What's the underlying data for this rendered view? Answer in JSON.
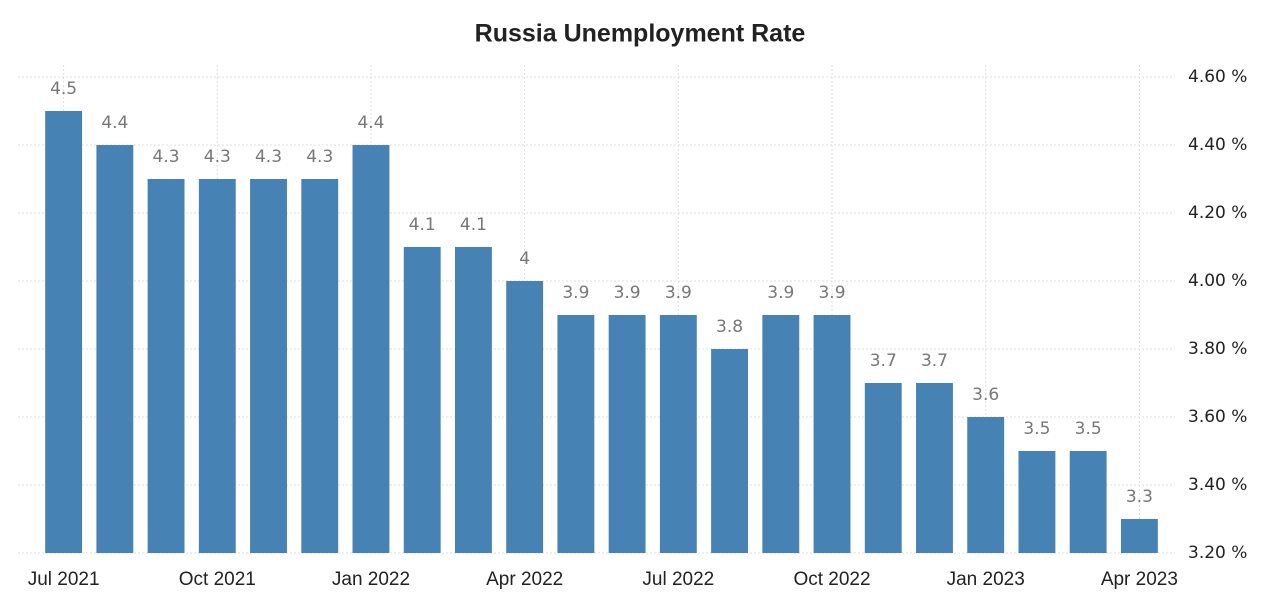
{
  "chart_data": {
    "type": "bar",
    "title": "Russia Unemployment Rate",
    "categories": [
      "Jul 2021",
      null,
      null,
      "Oct 2021",
      null,
      null,
      "Jan 2022",
      null,
      null,
      "Apr 2022",
      null,
      null,
      "Jul 2022",
      null,
      null,
      "Oct 2022",
      null,
      null,
      "Jan 2023",
      null,
      null,
      "Apr 2023"
    ],
    "values": [
      4.5,
      4.4,
      4.3,
      4.3,
      4.3,
      4.3,
      4.4,
      4.1,
      4.1,
      4,
      3.9,
      3.9,
      3.9,
      3.8,
      3.9,
      3.9,
      3.7,
      3.7,
      3.6,
      3.5,
      3.5,
      3.3
    ],
    "color": "#4682b4",
    "ylim": [
      3.2,
      4.6
    ],
    "yticks": [
      {
        "value": 3.2,
        "label": "3.20 %"
      },
      {
        "value": 3.4,
        "label": "3.40 %"
      },
      {
        "value": 3.6,
        "label": "3.60 %"
      },
      {
        "value": 3.8,
        "label": "3.80 %"
      },
      {
        "value": 4.0,
        "label": "4.00 %"
      },
      {
        "value": 4.2,
        "label": "4.20 %"
      },
      {
        "value": 4.4,
        "label": "4.40 %"
      },
      {
        "value": 4.6,
        "label": "4.60 %"
      }
    ],
    "grid": true
  }
}
